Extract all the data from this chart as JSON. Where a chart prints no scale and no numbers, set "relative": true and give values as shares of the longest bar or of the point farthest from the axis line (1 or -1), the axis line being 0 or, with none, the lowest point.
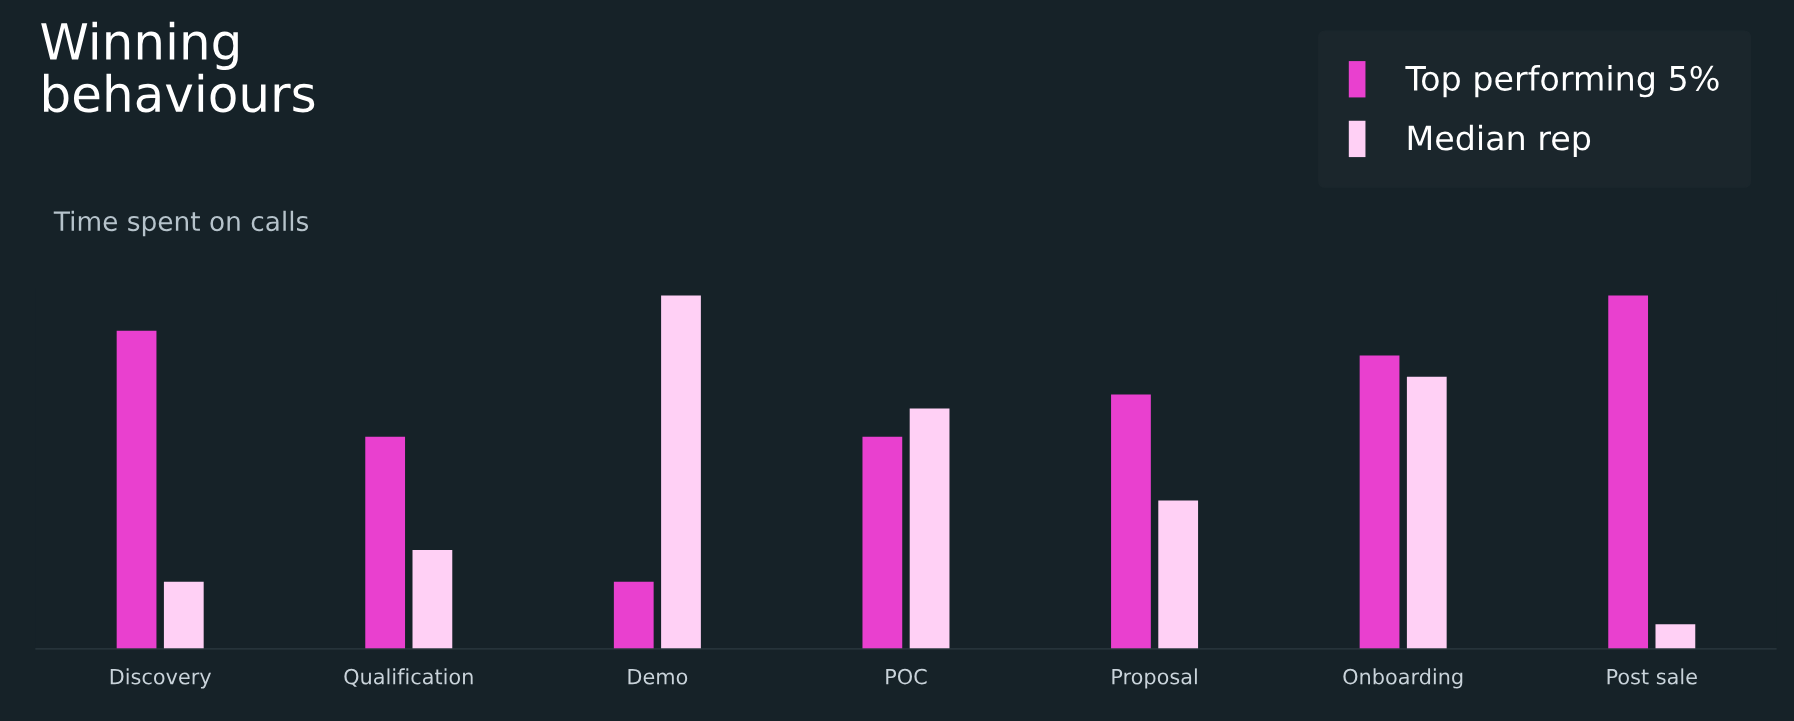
{
  "chart_data": {
    "type": "bar",
    "title": "Winning\nbehaviours",
    "subtitle": "Time spent on calls",
    "relative": true,
    "categories": [
      "Discovery",
      "Qualification",
      "Demo",
      "POC",
      "Proposal",
      "Onboarding",
      "Post sale"
    ],
    "series": [
      {
        "name": "Top performing 5%",
        "color": "#e940cf",
        "values": [
          0.9,
          0.6,
          0.19,
          0.6,
          0.72,
          0.83,
          1.0
        ]
      },
      {
        "name": "Median rep",
        "color": "#ffd0f5",
        "values": [
          0.19,
          0.28,
          1.0,
          0.68,
          0.42,
          0.77,
          0.07
        ]
      }
    ],
    "legend": "top right",
    "grid": false
  }
}
